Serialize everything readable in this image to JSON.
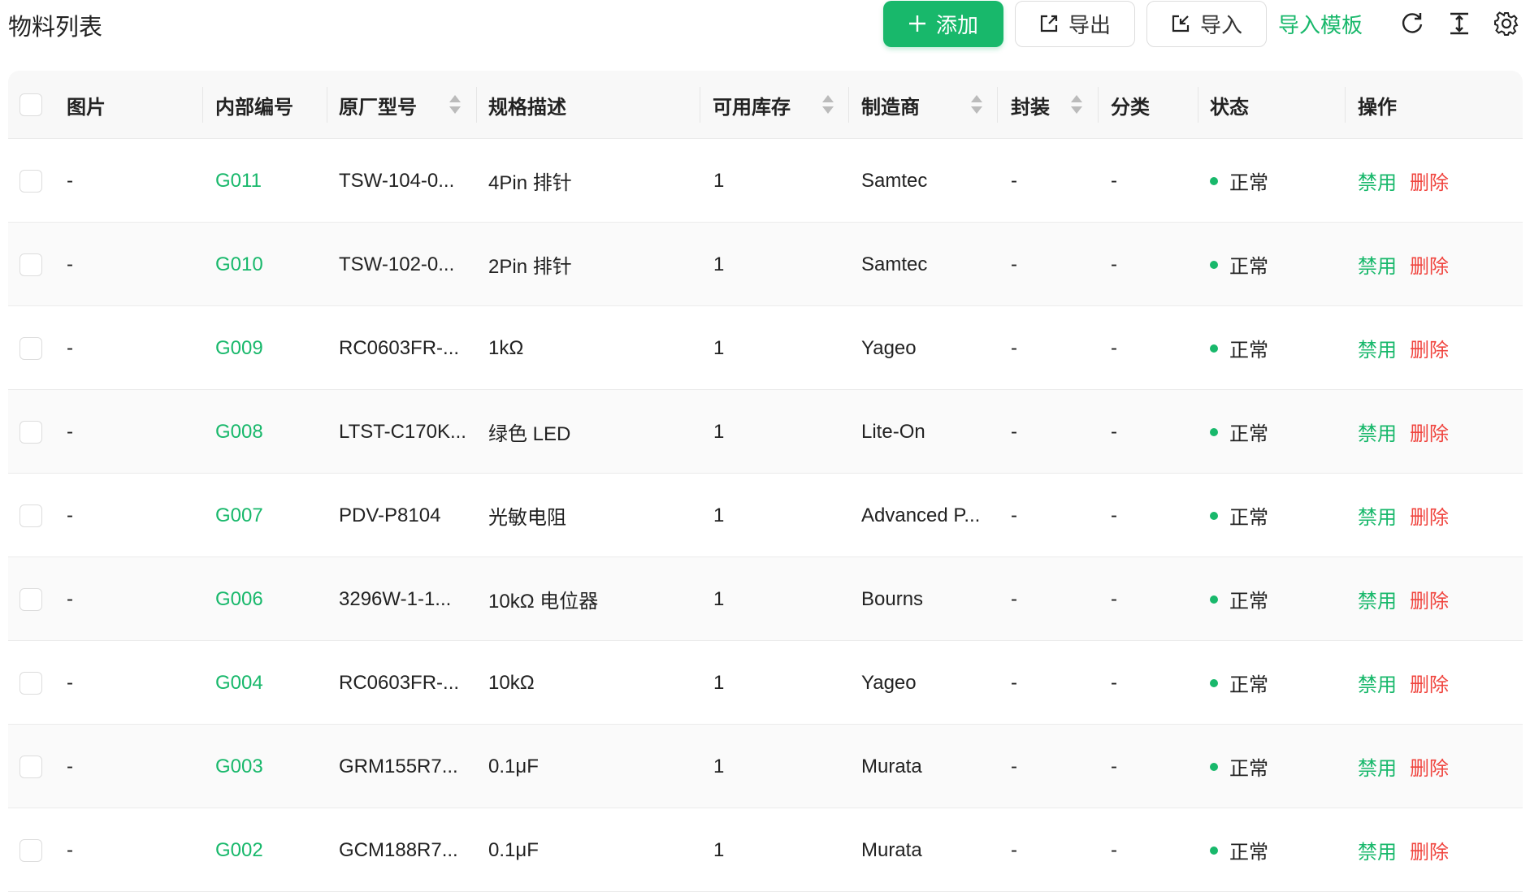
{
  "page": {
    "title": "物料列表"
  },
  "toolbar": {
    "add": "添加",
    "export": "导出",
    "import": "导入",
    "import_template": "导入模板",
    "icons": [
      "plus-icon",
      "export-icon",
      "import-icon",
      "refresh-icon",
      "row-height-icon",
      "settings-icon"
    ]
  },
  "colors": {
    "accent": "#18b86b",
    "danger": "#f0453f"
  },
  "columns": {
    "image": "图片",
    "code": "内部编号",
    "mpn": "原厂型号",
    "spec": "规格描述",
    "stock": "可用库存",
    "maker": "制造商",
    "package": "封装",
    "category": "分类",
    "status": "状态",
    "actions": "操作"
  },
  "rows": [
    {
      "image": "-",
      "code": "G011",
      "mpn": "TSW-104-0...",
      "spec": "4Pin 排针",
      "stock": "1",
      "maker": "Samtec",
      "package": "-",
      "category": "-",
      "status": "正常",
      "disable": "禁用",
      "delete": "删除"
    },
    {
      "image": "-",
      "code": "G010",
      "mpn": "TSW-102-0...",
      "spec": "2Pin 排针",
      "stock": "1",
      "maker": "Samtec",
      "package": "-",
      "category": "-",
      "status": "正常",
      "disable": "禁用",
      "delete": "删除"
    },
    {
      "image": "-",
      "code": "G009",
      "mpn": "RC0603FR-...",
      "spec": "1kΩ",
      "stock": "1",
      "maker": "Yageo",
      "package": "-",
      "category": "-",
      "status": "正常",
      "disable": "禁用",
      "delete": "删除"
    },
    {
      "image": "-",
      "code": "G008",
      "mpn": "LTST-C170K...",
      "spec": "绿色 LED",
      "stock": "1",
      "maker": "Lite-On",
      "package": "-",
      "category": "-",
      "status": "正常",
      "disable": "禁用",
      "delete": "删除"
    },
    {
      "image": "-",
      "code": "G007",
      "mpn": "PDV-P8104",
      "spec": "光敏电阻",
      "stock": "1",
      "maker": "Advanced P...",
      "package": "-",
      "category": "-",
      "status": "正常",
      "disable": "禁用",
      "delete": "删除"
    },
    {
      "image": "-",
      "code": "G006",
      "mpn": "3296W-1-1...",
      "spec": "10kΩ 电位器",
      "stock": "1",
      "maker": "Bourns",
      "package": "-",
      "category": "-",
      "status": "正常",
      "disable": "禁用",
      "delete": "删除"
    },
    {
      "image": "-",
      "code": "G004",
      "mpn": "RC0603FR-...",
      "spec": "10kΩ",
      "stock": "1",
      "maker": "Yageo",
      "package": "-",
      "category": "-",
      "status": "正常",
      "disable": "禁用",
      "delete": "删除"
    },
    {
      "image": "-",
      "code": "G003",
      "mpn": "GRM155R7...",
      "spec": "0.1μF",
      "stock": "1",
      "maker": "Murata",
      "package": "-",
      "category": "-",
      "status": "正常",
      "disable": "禁用",
      "delete": "删除"
    },
    {
      "image": "-",
      "code": "G002",
      "mpn": "GCM188R7...",
      "spec": "0.1μF",
      "stock": "1",
      "maker": "Murata",
      "package": "-",
      "category": "-",
      "status": "正常",
      "disable": "禁用",
      "delete": "删除"
    }
  ]
}
